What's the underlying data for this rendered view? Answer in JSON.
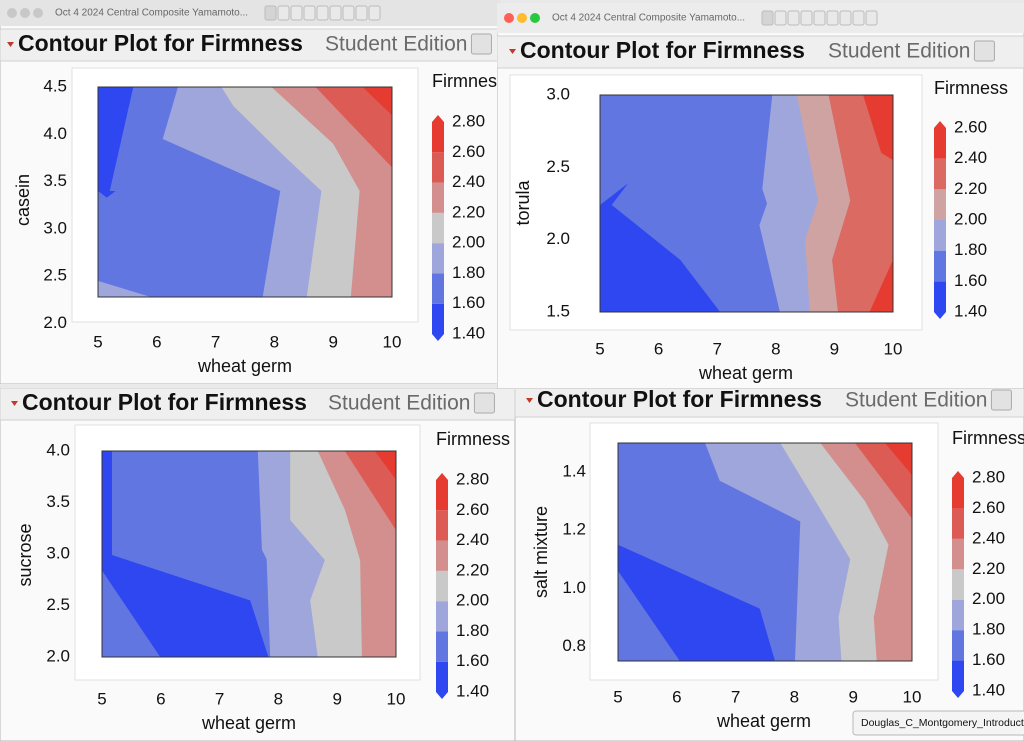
{
  "windows": [
    {
      "title_bar": "Oct 4 2024 Central Composite  Yamamoto...",
      "heading": "Contour Plot for Firmness",
      "edition": "Student Edition",
      "chart": {
        "type": "contour",
        "x_label": "wheat germ",
        "y_label": "casein",
        "xlim": [
          5,
          10
        ],
        "ylim": [
          2.28,
          4.5
        ],
        "xticks": [
          5,
          6,
          7,
          8,
          9,
          10
        ],
        "yticks": [
          {
            "value": 2,
            "label": "2.0"
          },
          2.5,
          {
            "value": 3,
            "label": "3.0"
          },
          3.5,
          {
            "value": 4,
            "label": "4.0"
          },
          4.5
        ],
        "bands": [
          {
            "color": "#6176e0",
            "x": [
              5,
              10,
              10,
              5
            ],
            "y": [
              2.28,
              2.28,
              4.5,
              4.5
            ]
          },
          {
            "color": "#2f47f0",
            "x": [
              5,
              5.6,
              5.2,
              5
            ],
            "y": [
              4.5,
              4.5,
              3.4,
              3.4
            ]
          },
          {
            "color": "#2f47f0",
            "x": [
              5,
              5.3,
              5.15
            ],
            "y": [
              3.4,
              3.4,
              3.33
            ]
          },
          {
            "color": "#9ea6dc",
            "x": [
              5,
              5.9,
              5
            ],
            "y": [
              2.45,
              2.28,
              2.28
            ]
          },
          {
            "color": "#9ea6dc",
            "x": [
              6.36,
              6.1,
              8.1,
              7.8,
              10,
              10
            ],
            "y": [
              4.5,
              3.95,
              3.4,
              2.28,
              2.28,
              4.5
            ]
          },
          {
            "color": "#c9c9c9",
            "x": [
              7.1,
              7.3,
              8.2,
              8.8,
              8.55,
              10,
              10
            ],
            "y": [
              4.5,
              4.3,
              3.75,
              3.4,
              2.28,
              2.28,
              4.5
            ]
          },
          {
            "color": "#d38f8d",
            "x": [
              7.95,
              9.0,
              9.45,
              9.3,
              10,
              10
            ],
            "y": [
              4.5,
              3.9,
              3.4,
              2.28,
              2.28,
              4.5
            ]
          },
          {
            "color": "#dc5b55",
            "x": [
              8.7,
              10,
              10
            ],
            "y": [
              4.5,
              3.65,
              4.5
            ]
          },
          {
            "color": "#e53b30",
            "x": [
              9.5,
              10,
              10
            ],
            "y": [
              4.5,
              4.2,
              4.5
            ]
          }
        ],
        "legend": {
          "title": "Firmness",
          "ticks": [
            {
              "value": 1.4,
              "label": "1.40"
            },
            {
              "value": 1.6,
              "label": "1.60"
            },
            {
              "value": 1.8,
              "label": "1.80"
            },
            {
              "value": 2.0,
              "label": "2.00"
            },
            {
              "value": 2.2,
              "label": "2.20"
            },
            {
              "value": 2.4,
              "label": "2.40"
            },
            {
              "value": 2.6,
              "label": "2.60"
            },
            {
              "value": 2.8,
              "label": "2.80"
            }
          ],
          "colors": [
            "#2f47f0",
            "#6176e0",
            "#9ea6dc",
            "#c9c9c9",
            "#d38f8d",
            "#dc5b55",
            "#e53b30"
          ]
        }
      }
    },
    {
      "title_bar": "Oct 4 2024 Central Composite  Yamamoto...",
      "heading": "Contour Plot for Firmness",
      "edition": "Student Edition",
      "chart": {
        "type": "contour",
        "x_label": "wheat germ",
        "y_label": "torula",
        "xlim": [
          5,
          10
        ],
        "ylim": [
          1.5,
          3.0
        ],
        "xticks": [
          5,
          6,
          7,
          8,
          9,
          10
        ],
        "yticks": [
          1.5,
          {
            "value": 2,
            "label": "2.0"
          },
          2.5,
          {
            "value": 3,
            "label": "3.0"
          }
        ],
        "bands": [
          {
            "color": "#6176e0",
            "x": [
              5,
              10,
              10,
              5
            ],
            "y": [
              1.5,
              1.5,
              3,
              3
            ]
          },
          {
            "color": "#2f47f0",
            "x": [
              5,
              5.48,
              5.2,
              6.37,
              7.05,
              5
            ],
            "y": [
              2.24,
              2.39,
              2.24,
              1.86,
              1.5,
              1.5
            ]
          },
          {
            "color": "#9ea6dc",
            "x": [
              7.94,
              7.77,
              7.85,
              7.72,
              8.07,
              10,
              10
            ],
            "y": [
              3,
              2.35,
              2.25,
              2.1,
              1.5,
              1.5,
              3
            ]
          },
          {
            "color": "#d0a3a3",
            "x": [
              8.36,
              8.72,
              8.5,
              8.58,
              10,
              10
            ],
            "y": [
              3,
              2.27,
              2.0,
              1.5,
              1.5,
              3
            ]
          },
          {
            "color": "#db6a63",
            "x": [
              8.9,
              9.27,
              8.96,
              9.06,
              10,
              10
            ],
            "y": [
              3,
              2.27,
              1.86,
              1.5,
              1.5,
              3
            ]
          },
          {
            "color": "#e53b30",
            "x": [
              9.49,
              9.8,
              10,
              10
            ],
            "y": [
              3,
              2.6,
              2.55,
              3
            ]
          },
          {
            "color": "#e53b30",
            "x": [
              9.6,
              10,
              10
            ],
            "y": [
              1.5,
              1.86,
              1.5
            ]
          }
        ],
        "legend": {
          "title": "Firmness",
          "ticks": [
            {
              "value": 1.4,
              "label": "1.40"
            },
            {
              "value": 1.6,
              "label": "1.60"
            },
            {
              "value": 1.8,
              "label": "1.80"
            },
            {
              "value": 2.0,
              "label": "2.00"
            },
            {
              "value": 2.2,
              "label": "2.20"
            },
            {
              "value": 2.4,
              "label": "2.40"
            },
            {
              "value": 2.6,
              "label": "2.60"
            }
          ],
          "colors": [
            "#2f47f0",
            "#6176e0",
            "#9ea6dc",
            "#d0a3a3",
            "#db6a63",
            "#e53b30"
          ]
        }
      }
    },
    {
      "heading": "Contour Plot for Firmness",
      "edition": "Student Edition",
      "chart": {
        "type": "contour",
        "x_label": "wheat germ",
        "y_label": "sucrose",
        "xlim": [
          5,
          10
        ],
        "ylim": [
          2,
          4
        ],
        "xticks": [
          5,
          6,
          7,
          8,
          9,
          10
        ],
        "yticks": [
          {
            "value": 2,
            "label": "2.0"
          },
          2.5,
          {
            "value": 3,
            "label": "3.0"
          },
          3.5,
          {
            "value": 4,
            "label": "4.0"
          }
        ],
        "bands": [
          {
            "color": "#6176e0",
            "x": [
              5,
              10,
              10,
              5
            ],
            "y": [
              2,
              2,
              4,
              4
            ]
          },
          {
            "color": "#2f47f0",
            "x": [
              5,
              5.17,
              5.17,
              7.52,
              7.83,
              5.99,
              5
            ],
            "y": [
              4,
              4,
              2.99,
              2.55,
              2,
              2,
              2.84
            ]
          },
          {
            "color": "#9ea6dc",
            "x": [
              7.65,
              7.72,
              7.8,
              7.86,
              10,
              10
            ],
            "y": [
              4,
              3.04,
              2.95,
              2,
              2,
              4
            ]
          },
          {
            "color": "#c9c9c9",
            "x": [
              8.2,
              8.2,
              8.79,
              8.54,
              8.67,
              10,
              10
            ],
            "y": [
              4,
              3.33,
              2.94,
              2.55,
              2,
              2,
              4
            ]
          },
          {
            "color": "#d38f8d",
            "x": [
              8.67,
              9.13,
              9.39,
              9.42,
              10,
              10
            ],
            "y": [
              4,
              3.43,
              2.94,
              2,
              2,
              4
            ]
          },
          {
            "color": "#dc5b55",
            "x": [
              9.13,
              10,
              10
            ],
            "y": [
              4,
              3.23,
              4
            ]
          },
          {
            "color": "#e53b30",
            "x": [
              9.64,
              10,
              10
            ],
            "y": [
              4,
              3.72,
              4
            ]
          }
        ],
        "legend": {
          "title": "Firmness",
          "ticks": [
            {
              "value": 1.4,
              "label": "1.40"
            },
            {
              "value": 1.6,
              "label": "1.60"
            },
            {
              "value": 1.8,
              "label": "1.80"
            },
            {
              "value": 2.0,
              "label": "2.00"
            },
            {
              "value": 2.2,
              "label": "2.20"
            },
            {
              "value": 2.4,
              "label": "2.40"
            },
            {
              "value": 2.6,
              "label": "2.60"
            },
            {
              "value": 2.8,
              "label": "2.80"
            }
          ],
          "colors": [
            "#2f47f0",
            "#6176e0",
            "#9ea6dc",
            "#c9c9c9",
            "#d38f8d",
            "#dc5b55",
            "#e53b30"
          ]
        }
      }
    },
    {
      "heading": "Contour Plot for Firmness",
      "edition": "Student Edition",
      "chart": {
        "type": "contour",
        "x_label": "wheat germ",
        "y_label": "salt mixture",
        "xlim": [
          5,
          10
        ],
        "ylim": [
          0.75,
          1.5
        ],
        "xticks": [
          5,
          6,
          7,
          8,
          9,
          10
        ],
        "yticks": [
          0.8,
          {
            "value": 1,
            "label": "1.0"
          },
          1.2,
          1.4
        ],
        "bands": [
          {
            "color": "#6176e0",
            "x": [
              5,
              10,
              10,
              5
            ],
            "y": [
              0.75,
              0.75,
              1.5,
              1.5
            ]
          },
          {
            "color": "#2f47f0",
            "x": [
              5,
              7.41,
              7.67,
              6.05,
              5
            ],
            "y": [
              1.15,
              0.93,
              0.75,
              0.75,
              1.06
            ]
          },
          {
            "color": "#9ea6dc",
            "x": [
              6.48,
              6.73,
              8.1,
              8.01,
              10,
              10
            ],
            "y": [
              1.5,
              1.37,
              1.23,
              0.75,
              0.75,
              1.5
            ]
          },
          {
            "color": "#c9c9c9",
            "x": [
              7.76,
              8.3,
              8.95,
              8.75,
              8.8,
              10,
              10
            ],
            "y": [
              1.5,
              1.32,
              1.1,
              0.9,
              0.75,
              0.75,
              1.5
            ]
          },
          {
            "color": "#d38f8d",
            "x": [
              8.44,
              9.2,
              9.6,
              9.35,
              9.4,
              10,
              10
            ],
            "y": [
              1.5,
              1.3,
              1.15,
              0.9,
              0.75,
              0.75,
              1.5
            ]
          },
          {
            "color": "#dc5b55",
            "x": [
              9.03,
              10,
              10
            ],
            "y": [
              1.5,
              1.24,
              1.5
            ]
          },
          {
            "color": "#e53b30",
            "x": [
              9.54,
              10,
              10
            ],
            "y": [
              1.5,
              1.39,
              1.5
            ]
          }
        ],
        "legend": {
          "title": "Firmness",
          "ticks": [
            {
              "value": 1.4,
              "label": "1.40"
            },
            {
              "value": 1.6,
              "label": "1.60"
            },
            {
              "value": 1.8,
              "label": "1.80"
            },
            {
              "value": 2.0,
              "label": "2.00"
            },
            {
              "value": 2.2,
              "label": "2.20"
            },
            {
              "value": 2.4,
              "label": "2.40"
            },
            {
              "value": 2.6,
              "label": "2.60"
            },
            {
              "value": 2.8,
              "label": "2.80"
            }
          ],
          "colors": [
            "#2f47f0",
            "#6176e0",
            "#9ea6dc",
            "#c9c9c9",
            "#d38f8d",
            "#dc5b55",
            "#e53b30"
          ]
        }
      }
    }
  ],
  "tooltip": "Douglas_C_Montgomery_Introduction_to"
}
